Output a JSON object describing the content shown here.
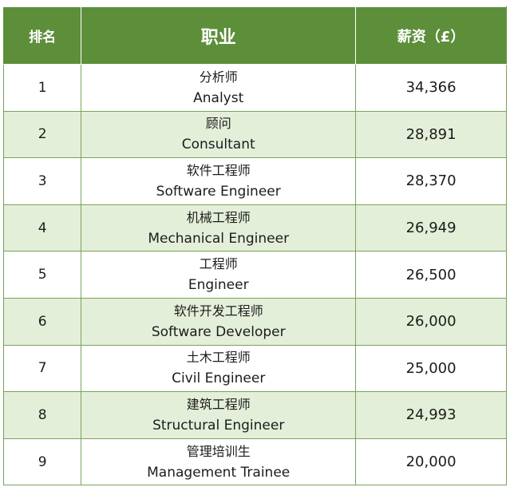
{
  "header": {
    "rank": "排名",
    "job": "职业",
    "salary": "薪资（£）"
  },
  "rows": [
    {
      "rank": "1",
      "zh": "分析师",
      "en": "Analyst",
      "salary": "34,366"
    },
    {
      "rank": "2",
      "zh": "顾问",
      "en": "Consultant",
      "salary": "28,891"
    },
    {
      "rank": "3",
      "zh": "软件工程师",
      "en": "Software Engineer",
      "salary": "28,370"
    },
    {
      "rank": "4",
      "zh": "机械工程师",
      "en": "Mechanical Engineer",
      "salary": "26,949"
    },
    {
      "rank": "5",
      "zh": "工程师",
      "en": "Engineer",
      "salary": "26,500"
    },
    {
      "rank": "6",
      "zh": "软件开发工程师",
      "en": "Software Developer",
      "salary": "26,000"
    },
    {
      "rank": "7",
      "zh": "土木工程师",
      "en": "Civil Engineer",
      "salary": "25,000"
    },
    {
      "rank": "8",
      "zh": "建筑工程师",
      "en": "Structural Engineer",
      "salary": "24,993"
    },
    {
      "rank": "9",
      "zh": "管理培训生",
      "en": "Management Trainee",
      "salary": "20,000"
    }
  ],
  "colors": {
    "header_bg": "#5d8f3a",
    "stripe_bg": "#e4efd9",
    "border": "#7aa25a"
  }
}
